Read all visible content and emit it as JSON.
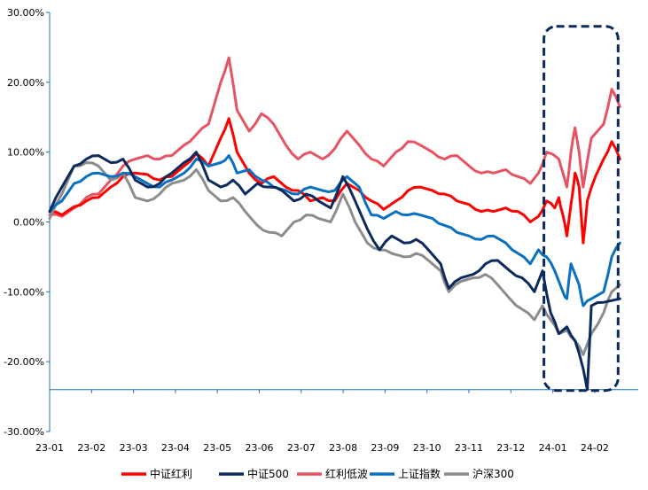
{
  "chart_data": {
    "type": "line",
    "title": "",
    "xlabel": "",
    "ylabel": "",
    "y_unit": "%",
    "ylim": [
      -30,
      30
    ],
    "y_ticks": [
      {
        "value": 30,
        "label": "30.00%"
      },
      {
        "value": 20,
        "label": "20.00%"
      },
      {
        "value": 10,
        "label": "10.00%"
      },
      {
        "value": 0,
        "label": "0.00%"
      },
      {
        "value": -10,
        "label": "-10.00%"
      },
      {
        "value": -20,
        "label": "-20.00%"
      },
      {
        "value": -30,
        "label": "-30.00%"
      }
    ],
    "x_ticks": [
      "23-01",
      "23-02",
      "23-03",
      "23-04",
      "23-05",
      "23-06",
      "23-07",
      "23-08",
      "23-09",
      "23-10",
      "23-11",
      "23-12",
      "24-01",
      "24-02"
    ],
    "x_range": [
      0,
      13.6
    ],
    "legend_position": "bottom",
    "grid": false,
    "baseline_value": -24,
    "highlight_box": {
      "x_from": 12.0,
      "x_to": 13.6,
      "y_from": -24,
      "y_to": 28,
      "color": "#0c2a5c",
      "style": "dashed"
    },
    "series": [
      {
        "name": "中证红利",
        "color": "#ff0000",
        "points": [
          [
            0,
            1.5
          ],
          [
            0.3,
            1.0
          ],
          [
            0.6,
            2.2
          ],
          [
            0.9,
            3.0
          ],
          [
            1.2,
            3.5
          ],
          [
            1.5,
            5.0
          ],
          [
            1.8,
            6.5
          ],
          [
            2.1,
            7.0
          ],
          [
            2.4,
            6.8
          ],
          [
            2.7,
            6.0
          ],
          [
            3.0,
            6.5
          ],
          [
            3.3,
            8.0
          ],
          [
            3.6,
            9.8
          ],
          [
            3.9,
            8.0
          ],
          [
            4.2,
            12.0
          ],
          [
            4.4,
            14.8
          ],
          [
            4.6,
            10.0
          ],
          [
            4.9,
            7.0
          ],
          [
            5.2,
            5.5
          ],
          [
            5.5,
            6.5
          ],
          [
            5.8,
            5.0
          ],
          [
            6.1,
            4.5
          ],
          [
            6.4,
            3.0
          ],
          [
            6.7,
            3.5
          ],
          [
            7.0,
            3.0
          ],
          [
            7.3,
            5.5
          ],
          [
            7.6,
            4.5
          ],
          [
            7.9,
            3.0
          ],
          [
            8.2,
            1.8
          ],
          [
            8.5,
            3.0
          ],
          [
            8.8,
            4.5
          ],
          [
            9.1,
            5.0
          ],
          [
            9.4,
            4.5
          ],
          [
            9.7,
            4.0
          ],
          [
            10.0,
            3.0
          ],
          [
            10.3,
            2.5
          ],
          [
            10.6,
            1.5
          ],
          [
            10.9,
            1.5
          ],
          [
            11.2,
            2.0
          ],
          [
            11.5,
            1.5
          ],
          [
            11.8,
            0.0
          ],
          [
            12.0,
            0.8
          ],
          [
            12.2,
            3.0
          ],
          [
            12.4,
            2.0
          ],
          [
            12.5,
            3.5
          ],
          [
            12.6,
            1.0
          ],
          [
            12.7,
            -2.0
          ],
          [
            12.8,
            2.5
          ],
          [
            12.9,
            7.0
          ],
          [
            13.0,
            5.0
          ],
          [
            13.1,
            -3.0
          ],
          [
            13.2,
            3.0
          ],
          [
            13.4,
            6.5
          ],
          [
            13.6,
            9.0
          ],
          [
            13.8,
            11.5
          ],
          [
            14.0,
            9.0
          ]
        ]
      },
      {
        "name": "中证500",
        "color": "#0c2a5c",
        "points": [
          [
            0,
            1.5
          ],
          [
            0.3,
            5.0
          ],
          [
            0.6,
            8.0
          ],
          [
            0.9,
            9.0
          ],
          [
            1.2,
            9.5
          ],
          [
            1.5,
            8.5
          ],
          [
            1.8,
            9.0
          ],
          [
            2.1,
            6.0
          ],
          [
            2.4,
            5.0
          ],
          [
            2.7,
            5.5
          ],
          [
            3.0,
            7.0
          ],
          [
            3.3,
            8.5
          ],
          [
            3.6,
            10.0
          ],
          [
            3.9,
            6.0
          ],
          [
            4.2,
            5.0
          ],
          [
            4.5,
            6.0
          ],
          [
            4.8,
            4.0
          ],
          [
            5.1,
            5.5
          ],
          [
            5.4,
            5.0
          ],
          [
            5.7,
            4.5
          ],
          [
            6.0,
            3.0
          ],
          [
            6.3,
            4.0
          ],
          [
            6.6,
            3.0
          ],
          [
            6.9,
            2.0
          ],
          [
            7.2,
            6.5
          ],
          [
            7.5,
            3.0
          ],
          [
            7.8,
            -1.0
          ],
          [
            8.1,
            -4.0
          ],
          [
            8.4,
            -2.0
          ],
          [
            8.7,
            -3.0
          ],
          [
            9.0,
            -2.5
          ],
          [
            9.3,
            -4.0
          ],
          [
            9.6,
            -6.0
          ],
          [
            9.8,
            -9.5
          ],
          [
            10.1,
            -8.0
          ],
          [
            10.4,
            -7.5
          ],
          [
            10.7,
            -6.0
          ],
          [
            11.0,
            -5.5
          ],
          [
            11.3,
            -7.0
          ],
          [
            11.6,
            -8.0
          ],
          [
            11.9,
            -10.0
          ],
          [
            12.1,
            -7.0
          ],
          [
            12.3,
            -13.0
          ],
          [
            12.5,
            -16.0
          ],
          [
            12.7,
            -15.0
          ],
          [
            12.9,
            -17.0
          ],
          [
            13.1,
            -21.0
          ],
          [
            13.2,
            -24.0
          ],
          [
            13.3,
            -12.0
          ],
          [
            13.6,
            -11.5
          ],
          [
            14.0,
            -11.0
          ]
        ]
      },
      {
        "name": "红利低波",
        "color": "#e65463",
        "points": [
          [
            0,
            1.0
          ],
          [
            0.3,
            0.8
          ],
          [
            0.6,
            2.0
          ],
          [
            0.9,
            3.5
          ],
          [
            1.2,
            4.0
          ],
          [
            1.5,
            6.0
          ],
          [
            1.8,
            8.0
          ],
          [
            2.1,
            9.0
          ],
          [
            2.4,
            9.5
          ],
          [
            2.7,
            9.0
          ],
          [
            3.0,
            9.5
          ],
          [
            3.3,
            11.0
          ],
          [
            3.6,
            12.5
          ],
          [
            3.9,
            14.0
          ],
          [
            4.2,
            20.0
          ],
          [
            4.4,
            23.5
          ],
          [
            4.6,
            16.0
          ],
          [
            4.9,
            13.0
          ],
          [
            5.2,
            15.5
          ],
          [
            5.5,
            14.0
          ],
          [
            5.8,
            11.0
          ],
          [
            6.1,
            9.0
          ],
          [
            6.4,
            10.0
          ],
          [
            6.7,
            9.0
          ],
          [
            7.0,
            10.5
          ],
          [
            7.3,
            13.0
          ],
          [
            7.6,
            11.0
          ],
          [
            7.9,
            9.0
          ],
          [
            8.2,
            8.0
          ],
          [
            8.5,
            10.0
          ],
          [
            8.8,
            11.5
          ],
          [
            9.1,
            11.0
          ],
          [
            9.4,
            10.0
          ],
          [
            9.7,
            9.0
          ],
          [
            10.0,
            9.5
          ],
          [
            10.3,
            8.0
          ],
          [
            10.6,
            7.0
          ],
          [
            10.9,
            7.0
          ],
          [
            11.2,
            7.5
          ],
          [
            11.5,
            6.5
          ],
          [
            11.8,
            5.5
          ],
          [
            12.0,
            7.0
          ],
          [
            12.2,
            10.0
          ],
          [
            12.5,
            9.0
          ],
          [
            12.7,
            5.0
          ],
          [
            12.8,
            10.0
          ],
          [
            12.9,
            13.5
          ],
          [
            13.0,
            10.0
          ],
          [
            13.1,
            5.0
          ],
          [
            13.3,
            12.0
          ],
          [
            13.6,
            14.0
          ],
          [
            13.8,
            19.0
          ],
          [
            14.0,
            16.5
          ]
        ]
      },
      {
        "name": "上证指数",
        "color": "#0a70c0",
        "points": [
          [
            0,
            1.5
          ],
          [
            0.3,
            3.0
          ],
          [
            0.6,
            5.5
          ],
          [
            0.9,
            6.5
          ],
          [
            1.2,
            7.0
          ],
          [
            1.5,
            6.5
          ],
          [
            1.8,
            7.0
          ],
          [
            2.1,
            6.5
          ],
          [
            2.4,
            5.5
          ],
          [
            2.7,
            5.0
          ],
          [
            3.0,
            6.0
          ],
          [
            3.3,
            7.0
          ],
          [
            3.6,
            9.0
          ],
          [
            3.9,
            8.0
          ],
          [
            4.2,
            8.5
          ],
          [
            4.4,
            9.5
          ],
          [
            4.6,
            7.0
          ],
          [
            4.9,
            7.5
          ],
          [
            5.2,
            6.0
          ],
          [
            5.5,
            5.0
          ],
          [
            5.8,
            4.5
          ],
          [
            6.1,
            4.0
          ],
          [
            6.4,
            5.0
          ],
          [
            6.7,
            4.5
          ],
          [
            7.0,
            4.5
          ],
          [
            7.3,
            6.5
          ],
          [
            7.6,
            5.0
          ],
          [
            7.9,
            1.0
          ],
          [
            8.2,
            0.5
          ],
          [
            8.5,
            1.5
          ],
          [
            8.8,
            1.0
          ],
          [
            9.1,
            1.0
          ],
          [
            9.4,
            0.5
          ],
          [
            9.7,
            -0.5
          ],
          [
            10.0,
            -1.5
          ],
          [
            10.3,
            -2.0
          ],
          [
            10.6,
            -2.5
          ],
          [
            10.9,
            -2.0
          ],
          [
            11.2,
            -3.0
          ],
          [
            11.5,
            -4.5
          ],
          [
            11.8,
            -6.0
          ],
          [
            12.0,
            -4.0
          ],
          [
            12.2,
            -5.0
          ],
          [
            12.4,
            -7.0
          ],
          [
            12.6,
            -10.0
          ],
          [
            12.7,
            -11.0
          ],
          [
            12.8,
            -6.0
          ],
          [
            13.0,
            -9.0
          ],
          [
            13.1,
            -12.0
          ],
          [
            13.3,
            -11.0
          ],
          [
            13.6,
            -10.0
          ],
          [
            13.8,
            -5.0
          ],
          [
            14.0,
            -3.0
          ]
        ]
      },
      {
        "name": "沪深300",
        "color": "#8c8c8c",
        "points": [
          [
            0,
            0.5
          ],
          [
            0.3,
            4.0
          ],
          [
            0.6,
            8.0
          ],
          [
            0.9,
            8.5
          ],
          [
            1.2,
            8.0
          ],
          [
            1.5,
            6.0
          ],
          [
            1.8,
            7.0
          ],
          [
            2.1,
            3.5
          ],
          [
            2.4,
            3.0
          ],
          [
            2.7,
            4.0
          ],
          [
            3.0,
            5.5
          ],
          [
            3.3,
            6.0
          ],
          [
            3.6,
            7.5
          ],
          [
            3.9,
            4.5
          ],
          [
            4.2,
            3.0
          ],
          [
            4.5,
            3.5
          ],
          [
            4.8,
            1.5
          ],
          [
            5.1,
            -0.5
          ],
          [
            5.4,
            -1.5
          ],
          [
            5.7,
            -2.0
          ],
          [
            6.0,
            0.0
          ],
          [
            6.3,
            1.0
          ],
          [
            6.6,
            0.5
          ],
          [
            6.9,
            0.0
          ],
          [
            7.2,
            4.0
          ],
          [
            7.5,
            0.0
          ],
          [
            7.8,
            -3.0
          ],
          [
            8.1,
            -4.0
          ],
          [
            8.4,
            -4.5
          ],
          [
            8.7,
            -5.0
          ],
          [
            9.0,
            -4.5
          ],
          [
            9.3,
            -5.5
          ],
          [
            9.6,
            -7.0
          ],
          [
            9.8,
            -10.0
          ],
          [
            10.1,
            -8.5
          ],
          [
            10.4,
            -8.0
          ],
          [
            10.7,
            -7.5
          ],
          [
            11.0,
            -9.0
          ],
          [
            11.3,
            -11.0
          ],
          [
            11.6,
            -12.5
          ],
          [
            11.9,
            -14.0
          ],
          [
            12.1,
            -12.0
          ],
          [
            12.3,
            -14.0
          ],
          [
            12.5,
            -16.0
          ],
          [
            12.7,
            -15.5
          ],
          [
            12.9,
            -17.0
          ],
          [
            13.1,
            -19.0
          ],
          [
            13.3,
            -16.0
          ],
          [
            13.6,
            -13.0
          ],
          [
            13.8,
            -10.0
          ],
          [
            14.0,
            -9.0
          ]
        ]
      }
    ]
  }
}
